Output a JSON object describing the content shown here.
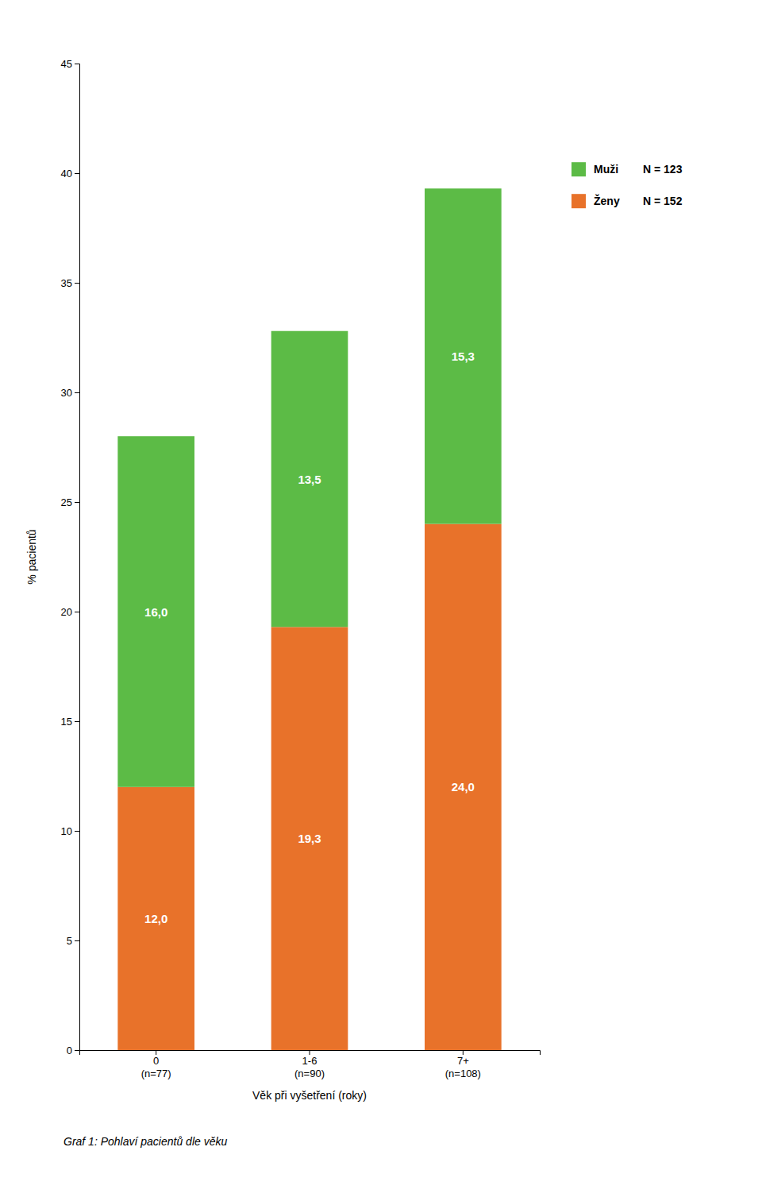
{
  "chart_data": {
    "type": "bar",
    "stacked": true,
    "data_labels": true,
    "legend": "right",
    "caption": "Graf 1: Pohlaví pacientů dle věku",
    "xlabel": "Věk při vyšetření (roky)",
    "ylabel": "% pacientů",
    "categories": [
      "0\n(n=77)",
      "1-6\n(n=90)",
      "7+\n(n=108)"
    ],
    "series": [
      {
        "name": "Ženy",
        "color": "#E8722A",
        "values": [
          12.0,
          19.3,
          24.0
        ],
        "value_labels": [
          "12,0",
          "19,3",
          "24,0"
        ],
        "note": "N = 152"
      },
      {
        "name": "Muži",
        "color": "#5CBB46",
        "values": [
          16.0,
          13.5,
          15.3
        ],
        "value_labels": [
          "16,0",
          "13,5",
          "15,3"
        ],
        "note": "N = 123"
      }
    ],
    "ylim": [
      0,
      45
    ],
    "yticks": [
      0,
      5,
      10,
      15,
      20,
      25,
      30,
      35,
      40,
      45
    ],
    "grid": false
  }
}
